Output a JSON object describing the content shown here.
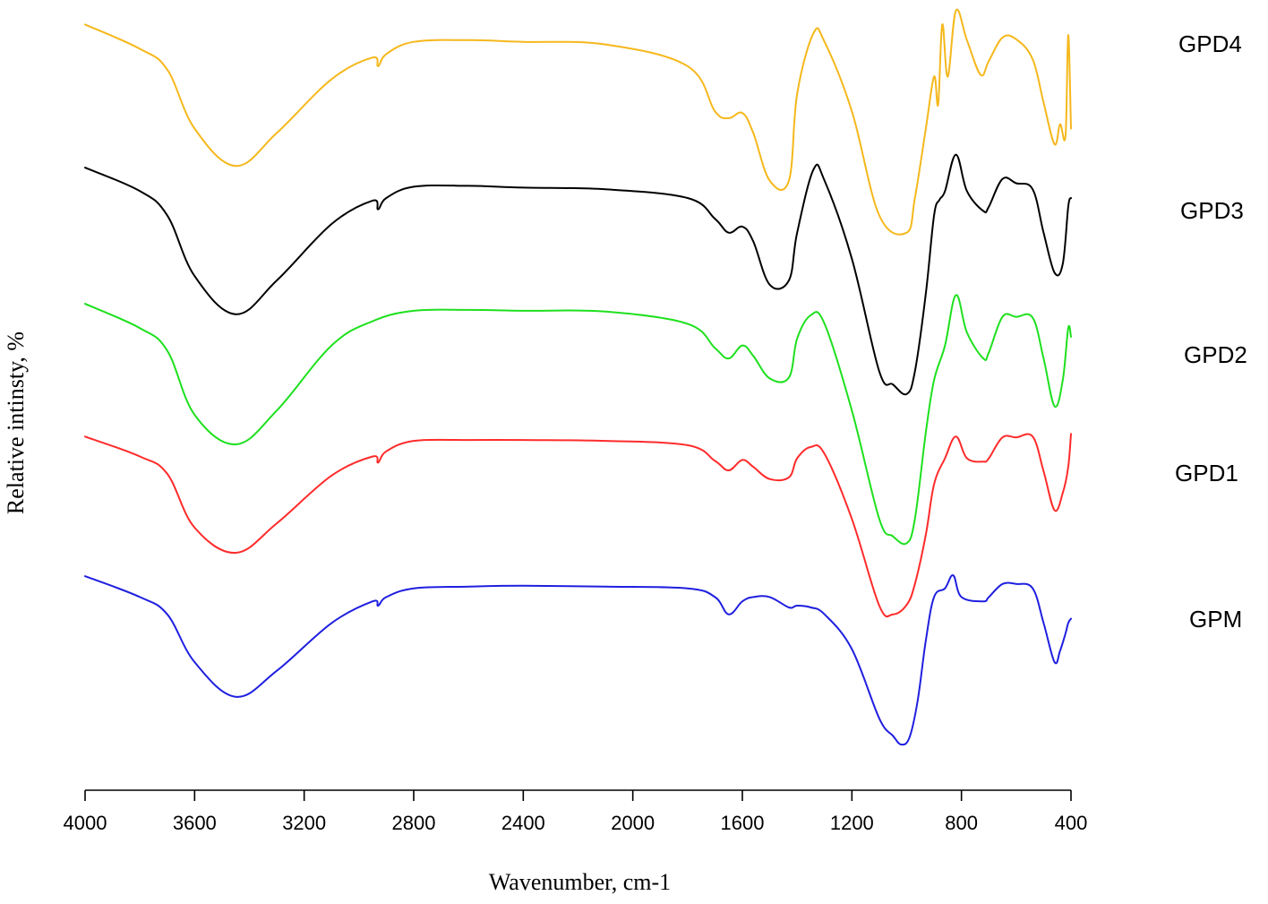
{
  "chart_data": {
    "type": "line",
    "title": "",
    "xlabel": "Wavenumber, cm-1",
    "ylabel": "Relative intinsty, %",
    "xlim": [
      4000,
      400
    ],
    "x_reversed": true,
    "x_ticks": [
      4000,
      3600,
      3200,
      2800,
      2400,
      2000,
      1600,
      1200,
      800,
      400
    ],
    "x_tick_labels": [
      "4000",
      "3600",
      "3200",
      "2800",
      "2400",
      "2000",
      "1600",
      "1200",
      "800",
      "400"
    ],
    "y_ticks_shown": false,
    "grid": false,
    "legend": "labels at right end of each trace",
    "y_note": "traces are vertically offset (stacked); y values are relative in arbitrary units, 0 = lowest",
    "ylim": [
      0,
      880
    ],
    "series": [
      {
        "name": "GPD4",
        "color": "#f5b81c",
        "points": [
          [
            4000,
            860
          ],
          [
            3800,
            832
          ],
          [
            3700,
            808
          ],
          [
            3600,
            740
          ],
          [
            3450,
            697
          ],
          [
            3300,
            735
          ],
          [
            3100,
            797
          ],
          [
            2950,
            822
          ],
          [
            2930,
            812
          ],
          [
            2900,
            826
          ],
          [
            2800,
            840
          ],
          [
            2600,
            842
          ],
          [
            2400,
            840
          ],
          [
            2100,
            837
          ],
          [
            1800,
            812
          ],
          [
            1700,
            760
          ],
          [
            1650,
            752
          ],
          [
            1600,
            758
          ],
          [
            1560,
            735
          ],
          [
            1500,
            680
          ],
          [
            1430,
            680
          ],
          [
            1400,
            780
          ],
          [
            1340,
            850
          ],
          [
            1300,
            840
          ],
          [
            1200,
            760
          ],
          [
            1100,
            640
          ],
          [
            1000,
            620
          ],
          [
            970,
            660
          ],
          [
            930,
            740
          ],
          [
            900,
            800
          ],
          [
            885,
            768
          ],
          [
            870,
            860
          ],
          [
            850,
            800
          ],
          [
            820,
            876
          ],
          [
            780,
            842
          ],
          [
            730,
            802
          ],
          [
            700,
            818
          ],
          [
            650,
            845
          ],
          [
            600,
            843
          ],
          [
            540,
            820
          ],
          [
            500,
            770
          ],
          [
            460,
            722
          ],
          [
            440,
            745
          ],
          [
            420,
            732
          ],
          [
            410,
            848
          ],
          [
            400,
            740
          ]
        ]
      },
      {
        "name": "GPD3",
        "color": "#000000",
        "points": [
          [
            4000,
            695
          ],
          [
            3800,
            668
          ],
          [
            3700,
            640
          ],
          [
            3600,
            570
          ],
          [
            3450,
            526
          ],
          [
            3300,
            565
          ],
          [
            3100,
            630
          ],
          [
            2950,
            657
          ],
          [
            2930,
            647
          ],
          [
            2900,
            660
          ],
          [
            2800,
            673
          ],
          [
            2600,
            674
          ],
          [
            2400,
            672
          ],
          [
            2100,
            670
          ],
          [
            1800,
            660
          ],
          [
            1700,
            636
          ],
          [
            1650,
            620
          ],
          [
            1600,
            627
          ],
          [
            1560,
            610
          ],
          [
            1500,
            560
          ],
          [
            1430,
            565
          ],
          [
            1400,
            620
          ],
          [
            1340,
            693
          ],
          [
            1300,
            680
          ],
          [
            1200,
            590
          ],
          [
            1100,
            460
          ],
          [
            1050,
            445
          ],
          [
            1000,
            434
          ],
          [
            970,
            460
          ],
          [
            930,
            550
          ],
          [
            900,
            640
          ],
          [
            880,
            658
          ],
          [
            860,
            668
          ],
          [
            820,
            710
          ],
          [
            780,
            668
          ],
          [
            720,
            645
          ],
          [
            700,
            650
          ],
          [
            650,
            682
          ],
          [
            600,
            677
          ],
          [
            540,
            670
          ],
          [
            500,
            620
          ],
          [
            460,
            574
          ],
          [
            430,
            584
          ],
          [
            410,
            650
          ],
          [
            400,
            660
          ]
        ]
      },
      {
        "name": "GPD2",
        "color": "#1ee01e",
        "points": [
          [
            4000,
            538
          ],
          [
            3800,
            510
          ],
          [
            3700,
            484
          ],
          [
            3600,
            410
          ],
          [
            3450,
            376
          ],
          [
            3300,
            415
          ],
          [
            3100,
            490
          ],
          [
            2950,
            518
          ],
          [
            2800,
            530
          ],
          [
            2600,
            531
          ],
          [
            2400,
            530
          ],
          [
            2100,
            529
          ],
          [
            1800,
            515
          ],
          [
            1700,
            487
          ],
          [
            1650,
            475
          ],
          [
            1600,
            490
          ],
          [
            1560,
            478
          ],
          [
            1500,
            452
          ],
          [
            1430,
            453
          ],
          [
            1400,
            498
          ],
          [
            1350,
            525
          ],
          [
            1300,
            515
          ],
          [
            1200,
            415
          ],
          [
            1100,
            290
          ],
          [
            1050,
            270
          ],
          [
            1000,
            262
          ],
          [
            970,
            290
          ],
          [
            930,
            390
          ],
          [
            900,
            450
          ],
          [
            860,
            490
          ],
          [
            820,
            548
          ],
          [
            780,
            505
          ],
          [
            720,
            475
          ],
          [
            700,
            482
          ],
          [
            650,
            523
          ],
          [
            600,
            523
          ],
          [
            540,
            522
          ],
          [
            500,
            475
          ],
          [
            460,
            420
          ],
          [
            430,
            450
          ],
          [
            410,
            510
          ],
          [
            400,
            500
          ]
        ]
      },
      {
        "name": "GPD1",
        "color": "#ff2b2b",
        "points": [
          [
            4000,
            385
          ],
          [
            3800,
            362
          ],
          [
            3700,
            342
          ],
          [
            3600,
            280
          ],
          [
            3450,
            251
          ],
          [
            3300,
            285
          ],
          [
            3100,
            340
          ],
          [
            2950,
            362
          ],
          [
            2930,
            355
          ],
          [
            2900,
            368
          ],
          [
            2800,
            380
          ],
          [
            2600,
            381
          ],
          [
            2400,
            381
          ],
          [
            2100,
            380
          ],
          [
            1800,
            375
          ],
          [
            1700,
            357
          ],
          [
            1650,
            346
          ],
          [
            1600,
            358
          ],
          [
            1560,
            350
          ],
          [
            1500,
            336
          ],
          [
            1430,
            338
          ],
          [
            1400,
            360
          ],
          [
            1350,
            373
          ],
          [
            1300,
            365
          ],
          [
            1200,
            290
          ],
          [
            1100,
            190
          ],
          [
            1050,
            180
          ],
          [
            1000,
            191
          ],
          [
            970,
            215
          ],
          [
            930,
            272
          ],
          [
            900,
            330
          ],
          [
            860,
            360
          ],
          [
            820,
            385
          ],
          [
            780,
            360
          ],
          [
            720,
            356
          ],
          [
            700,
            360
          ],
          [
            650,
            384
          ],
          [
            600,
            384
          ],
          [
            540,
            385
          ],
          [
            500,
            345
          ],
          [
            460,
            300
          ],
          [
            430,
            320
          ],
          [
            410,
            350
          ],
          [
            400,
            388
          ]
        ]
      },
      {
        "name": "GPM",
        "color": "#1f1fe0",
        "points": [
          [
            4000,
            224
          ],
          [
            3800,
            200
          ],
          [
            3700,
            180
          ],
          [
            3600,
            125
          ],
          [
            3450,
            85
          ],
          [
            3300,
            115
          ],
          [
            3100,
            170
          ],
          [
            2950,
            195
          ],
          [
            2930,
            190
          ],
          [
            2900,
            200
          ],
          [
            2800,
            210
          ],
          [
            2600,
            212
          ],
          [
            2400,
            213
          ],
          [
            2100,
            212
          ],
          [
            1800,
            210
          ],
          [
            1700,
            200
          ],
          [
            1650,
            180
          ],
          [
            1600,
            195
          ],
          [
            1560,
            200
          ],
          [
            1500,
            200
          ],
          [
            1430,
            188
          ],
          [
            1400,
            190
          ],
          [
            1350,
            188
          ],
          [
            1300,
            180
          ],
          [
            1200,
            140
          ],
          [
            1100,
            60
          ],
          [
            1050,
            40
          ],
          [
            1020,
            30
          ],
          [
            990,
            38
          ],
          [
            960,
            80
          ],
          [
            930,
            150
          ],
          [
            900,
            200
          ],
          [
            860,
            210
          ],
          [
            830,
            225
          ],
          [
            800,
            200
          ],
          [
            720,
            195
          ],
          [
            700,
            200
          ],
          [
            650,
            215
          ],
          [
            600,
            215
          ],
          [
            540,
            210
          ],
          [
            500,
            170
          ],
          [
            460,
            125
          ],
          [
            440,
            138
          ],
          [
            420,
            158
          ],
          [
            410,
            170
          ],
          [
            400,
            175
          ]
        ]
      }
    ]
  }
}
